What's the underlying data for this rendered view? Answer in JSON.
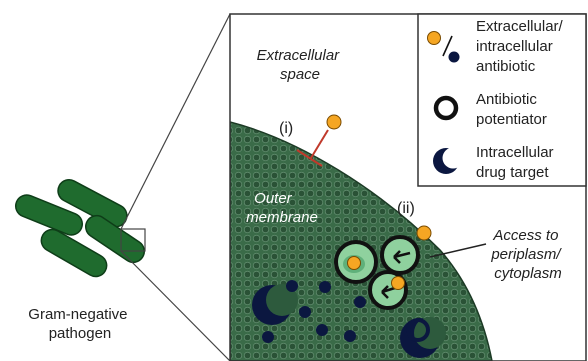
{
  "pathogen_label": [
    "Gram-negative",
    "pathogen"
  ],
  "extracellular_label": [
    "Extracellular",
    "space"
  ],
  "outer_membrane_label": [
    "Outer",
    "membrane"
  ],
  "mechanism_i": "(i)",
  "mechanism_ii": "(ii)",
  "access_label": [
    "Access to",
    "periplasm/",
    "cytoplasm"
  ],
  "legend": {
    "items": [
      {
        "icon": "antibiotic-pair-icon",
        "lines": [
          "Extracellular/",
          "intracellular",
          "antibiotic"
        ]
      },
      {
        "icon": "ring-icon",
        "lines": [
          "Antibiotic",
          "potentiator"
        ]
      },
      {
        "icon": "crescent-icon",
        "lines": [
          "Intracellular",
          "drug target"
        ]
      }
    ]
  },
  "colors": {
    "cell_green": "#1f6b2e",
    "membrane_green": "#2d5a3d",
    "antibiotic_orange": "#f5a623",
    "navy": "#0b1740",
    "inhibit_red": "#c0392b",
    "potentiator_green": "#8fd19e"
  }
}
